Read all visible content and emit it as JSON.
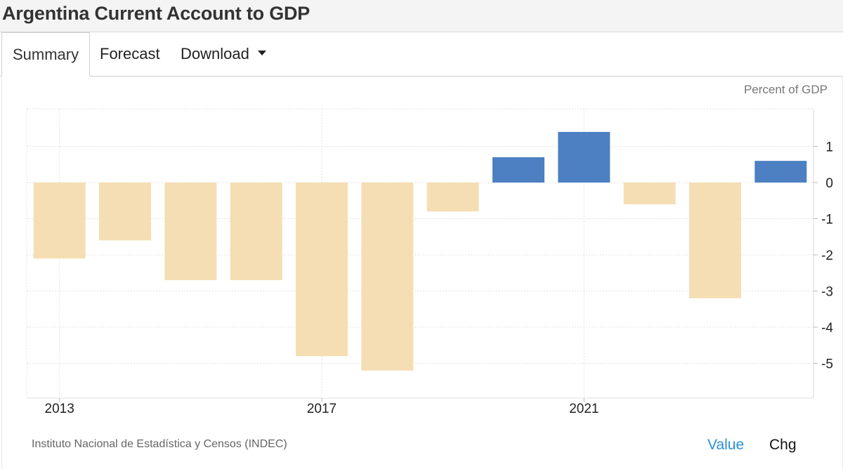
{
  "page": {
    "title": "Argentina Current Account to GDP"
  },
  "tabs": [
    {
      "label": "Summary",
      "active": true
    },
    {
      "label": "Forecast",
      "active": false
    },
    {
      "label": "Download",
      "active": false,
      "icon": "caret-down-icon"
    }
  ],
  "chart_data": {
    "type": "bar",
    "title": "Argentina Current Account to GDP",
    "unit_label": "Percent of GDP",
    "categories": [
      "2013",
      "2014",
      "2015",
      "2016",
      "2017",
      "2018",
      "2019",
      "2020",
      "2021",
      "2022",
      "2023",
      "2024"
    ],
    "x_tick_labels": [
      "2013",
      "2017",
      "2021"
    ],
    "values": [
      -2.1,
      -1.6,
      -2.7,
      -2.7,
      -4.8,
      -5.2,
      -0.8,
      0.7,
      1.4,
      -0.6,
      -3.2,
      0.6
    ],
    "ylim": [
      -6,
      2
    ],
    "y_ticks": [
      1,
      0,
      -1,
      -2,
      -3,
      -4,
      -5
    ],
    "y_tick_labels": [
      "1",
      "0",
      "-1",
      "-2",
      "-3",
      "-4",
      "-5"
    ],
    "grid": true,
    "colors": {
      "positive": "#4c80c2",
      "negative": "#f5deb3"
    }
  },
  "footer": {
    "source": "Instituto Nacional de Estadística y Censos (INDEC)",
    "toggle_value": "Value",
    "toggle_chg": "Chg"
  },
  "colors": {
    "accent": "#2a8fd8"
  }
}
